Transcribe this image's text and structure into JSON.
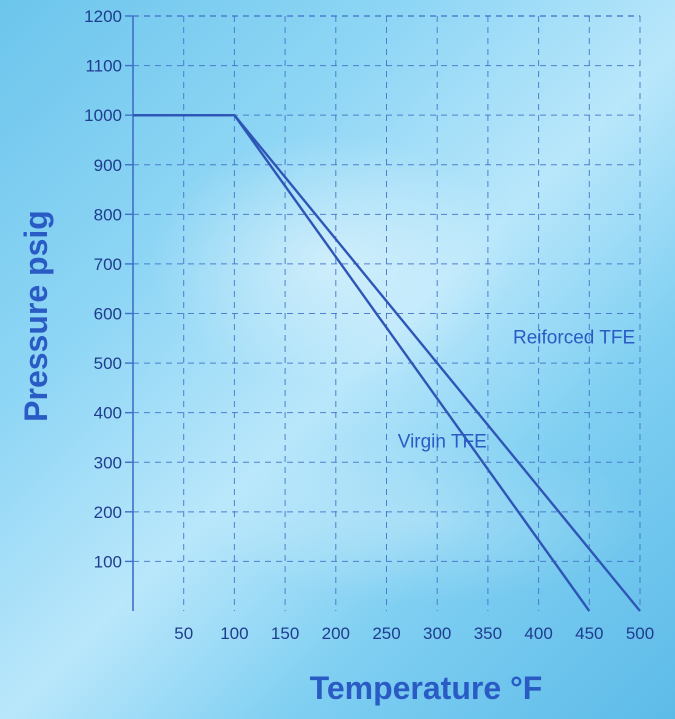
{
  "chart_data": {
    "type": "line",
    "xlabel": "Temperature °F",
    "ylabel": "Pressure psig",
    "xlim": [
      0,
      500
    ],
    "ylim": [
      0,
      1200
    ],
    "x_ticks": [
      "50",
      "100",
      "150",
      "200",
      "250",
      "300",
      "350",
      "400",
      "450",
      "500"
    ],
    "y_ticks": [
      "100",
      "200",
      "300",
      "400",
      "500",
      "600",
      "700",
      "800",
      "900",
      "1000",
      "1100",
      "1200"
    ],
    "grid": true,
    "series": [
      {
        "name": "Reiforced TFE",
        "x": [
          0,
          100,
          500
        ],
        "y": [
          1000,
          1000,
          0
        ]
      },
      {
        "name": "Virgin TFE",
        "x": [
          0,
          100,
          450
        ],
        "y": [
          1000,
          1000,
          0
        ]
      }
    ],
    "annotations": [
      {
        "text": "Reiforced TFE",
        "x": 435,
        "y": 540
      },
      {
        "text": "Virgin TFE",
        "x": 305,
        "y": 330
      }
    ],
    "colors": {
      "line": "#2e56b6",
      "grid": "#3f6fc8",
      "axis_title": "#2a5bc4",
      "tick_label": "#1f3c8f"
    }
  }
}
